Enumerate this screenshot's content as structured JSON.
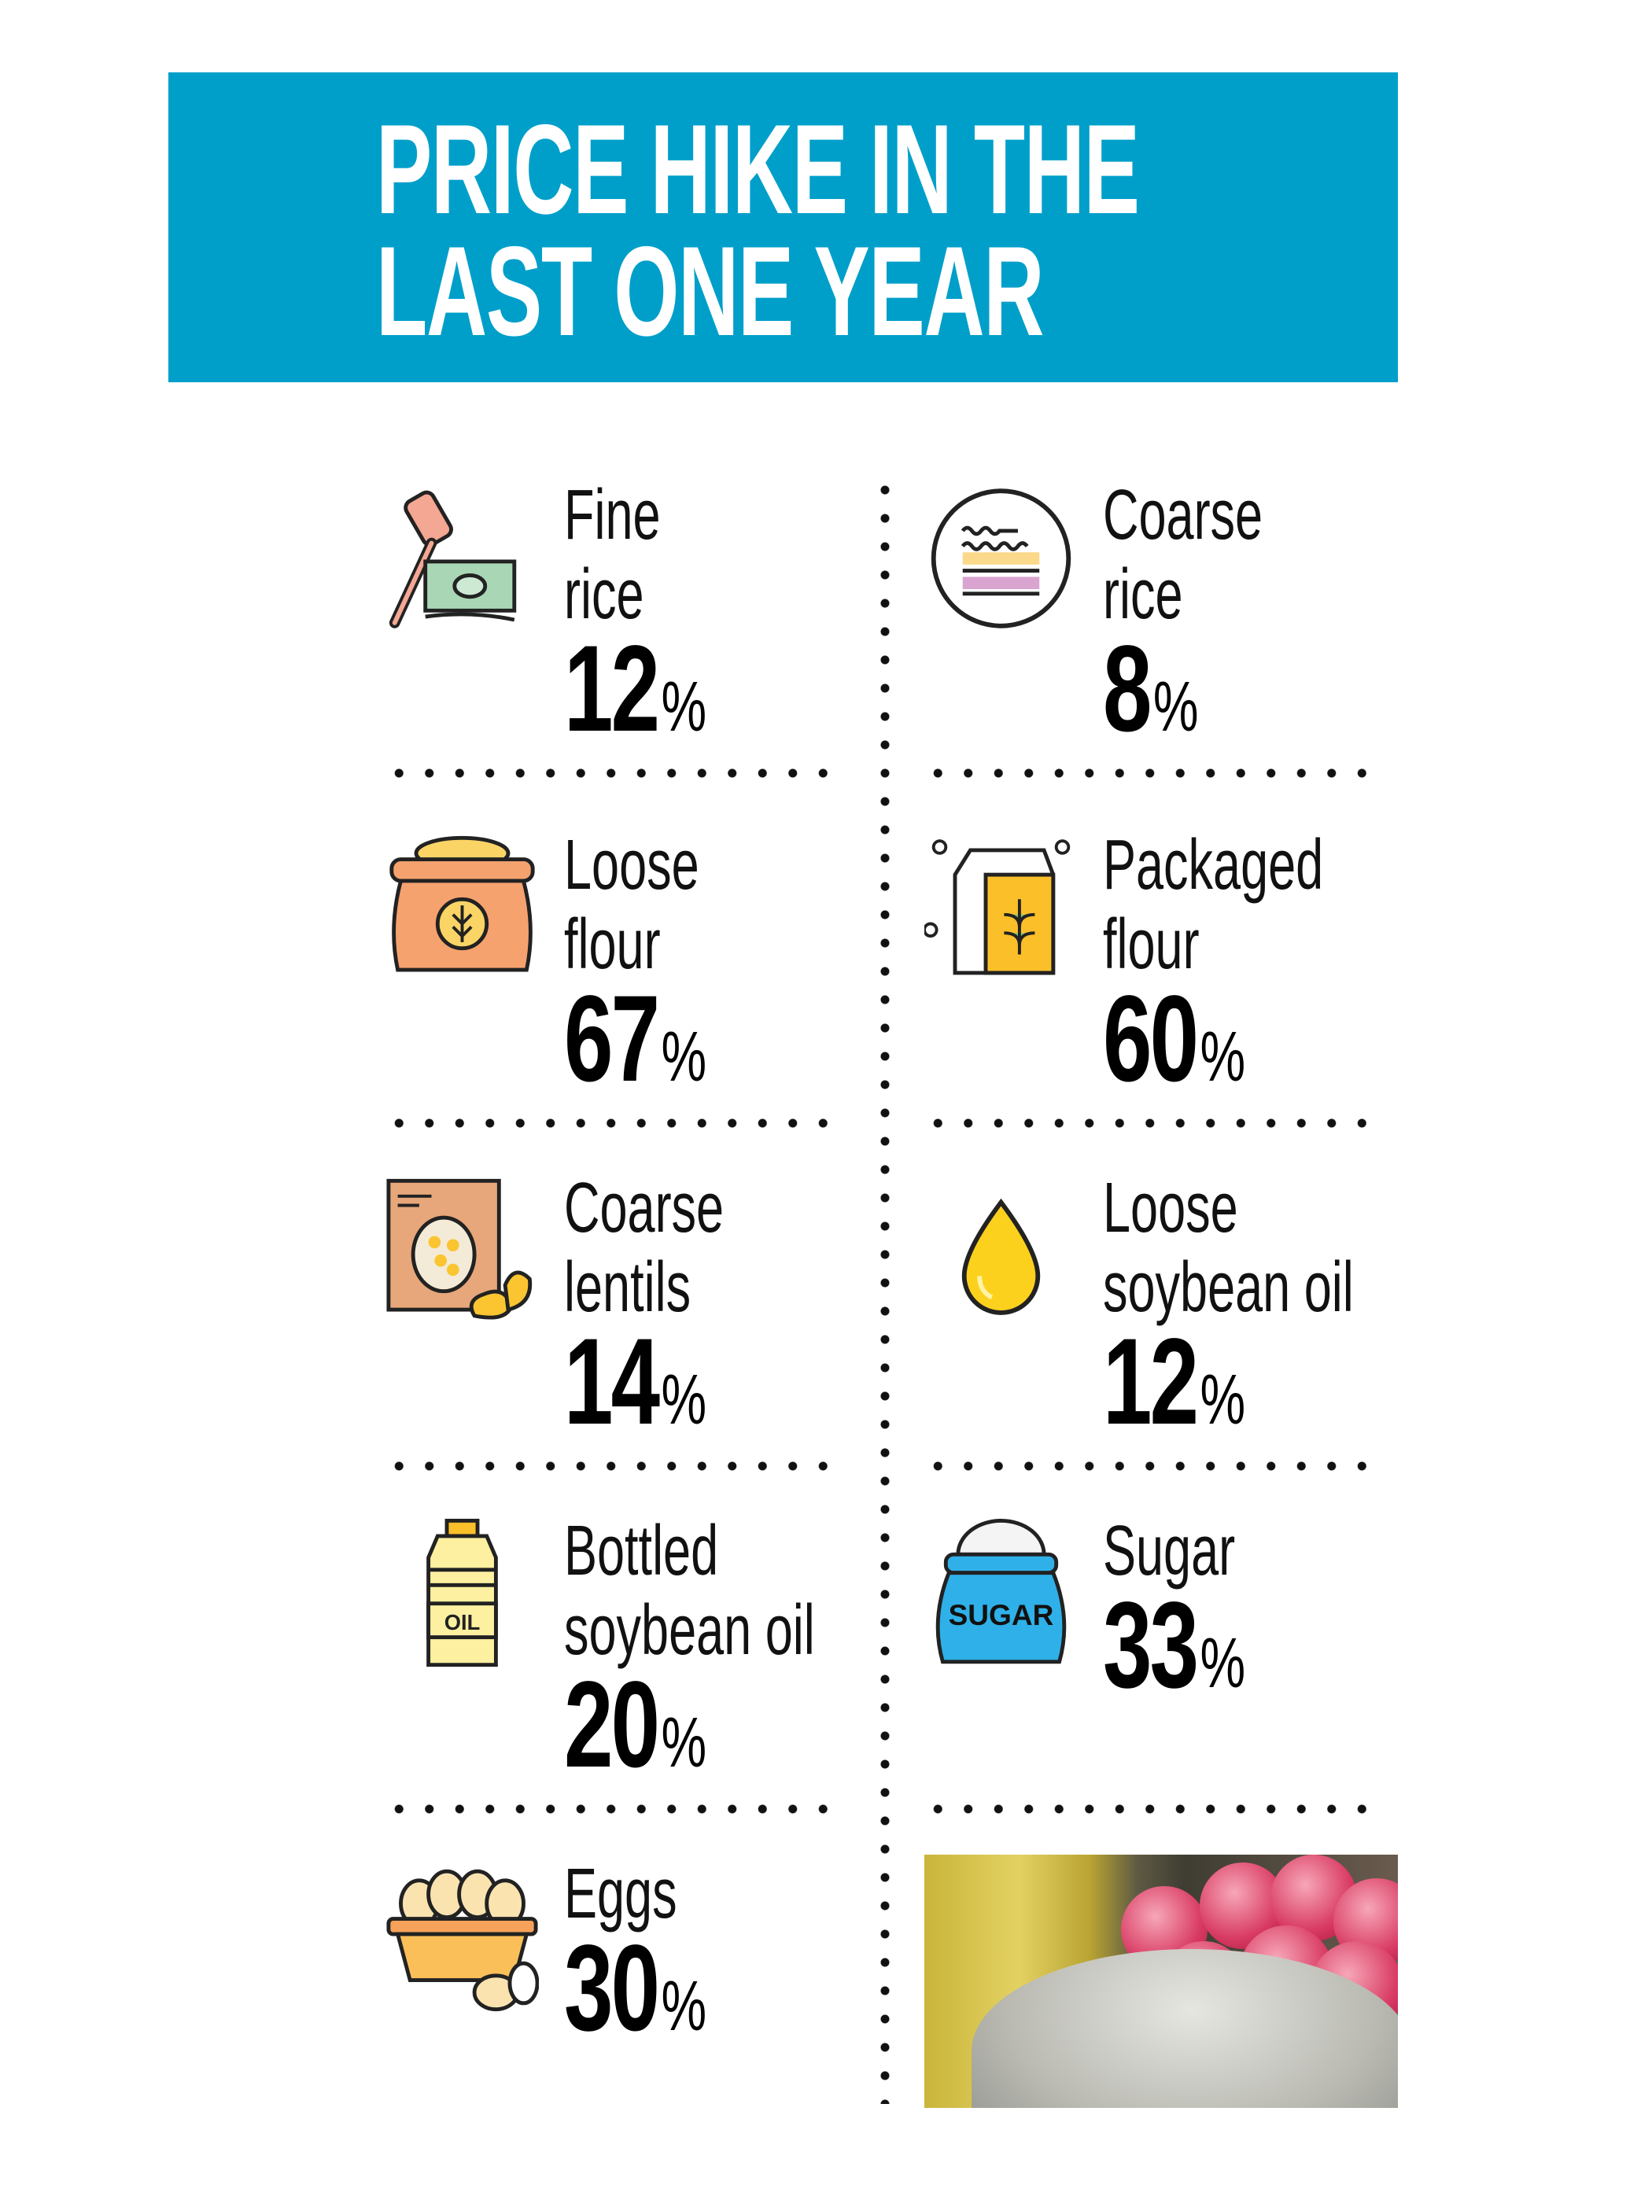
{
  "header": {
    "title_line1": "PRICE HIKE IN THE",
    "title_line2": "LAST ONE YEAR",
    "background": "#009fca"
  },
  "items": [
    {
      "label1": "Fine",
      "label2": "rice",
      "value": "12",
      "unit": "%",
      "icon": "gavel-money-icon"
    },
    {
      "label1": "Coarse",
      "label2": "rice",
      "value": "8",
      "unit": "%",
      "icon": "rice-layers-icon"
    },
    {
      "label1": "Loose",
      "label2": "flour",
      "value": "67",
      "unit": "%",
      "icon": "flour-sack-icon"
    },
    {
      "label1": "Packaged",
      "label2": "flour",
      "value": "60",
      "unit": "%",
      "icon": "flour-packet-icon"
    },
    {
      "label1": "Coarse",
      "label2": "lentils",
      "value": "14",
      "unit": "%",
      "icon": "lentils-bag-icon"
    },
    {
      "label1": "Loose",
      "label2": "soybean oil",
      "value": "12",
      "unit": "%",
      "icon": "oil-drop-icon"
    },
    {
      "label1": "Bottled",
      "label2": "soybean oil",
      "value": "20",
      "unit": "%",
      "icon": "oil-bottle-icon"
    },
    {
      "label1": "Sugar",
      "value": "33",
      "unit": "%",
      "icon": "sugar-sack-icon"
    },
    {
      "label1": "Eggs",
      "value": "30",
      "unit": "%",
      "icon": "egg-basket-icon"
    }
  ],
  "icon_texts": {
    "bottle": "OIL",
    "sugar": "SUGAR"
  }
}
